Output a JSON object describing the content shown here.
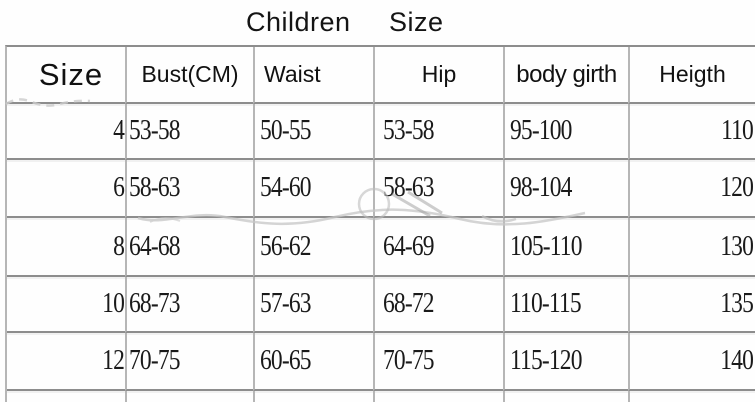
{
  "title": {
    "word1": "Children",
    "word2": "Size"
  },
  "table": {
    "headers": [
      "Size",
      "Bust(CM)",
      "Waist",
      "Hip",
      "body girth",
      "Heigth"
    ],
    "rows": [
      [
        "4",
        "53-58",
        "50-55",
        "53-58",
        "95-100",
        "110"
      ],
      [
        "6",
        "58-63",
        "54-60",
        "58-63",
        "98-104",
        "120"
      ],
      [
        "8",
        "64-68",
        "56-62",
        "64-69",
        "105-110",
        "130"
      ],
      [
        "10",
        "68-73",
        "57-63",
        "68-72",
        "110-115",
        "135"
      ],
      [
        "12",
        "70-75",
        "60-65",
        "70-75",
        "115-120",
        "140"
      ]
    ]
  },
  "colors": {
    "background": "#fefefe",
    "grid_line": "#8d8d8d",
    "grid_line_light": "#b6b6b6",
    "text": "#1a1a1a",
    "header_text": "#111111",
    "watermark": "#c6c6c6"
  }
}
